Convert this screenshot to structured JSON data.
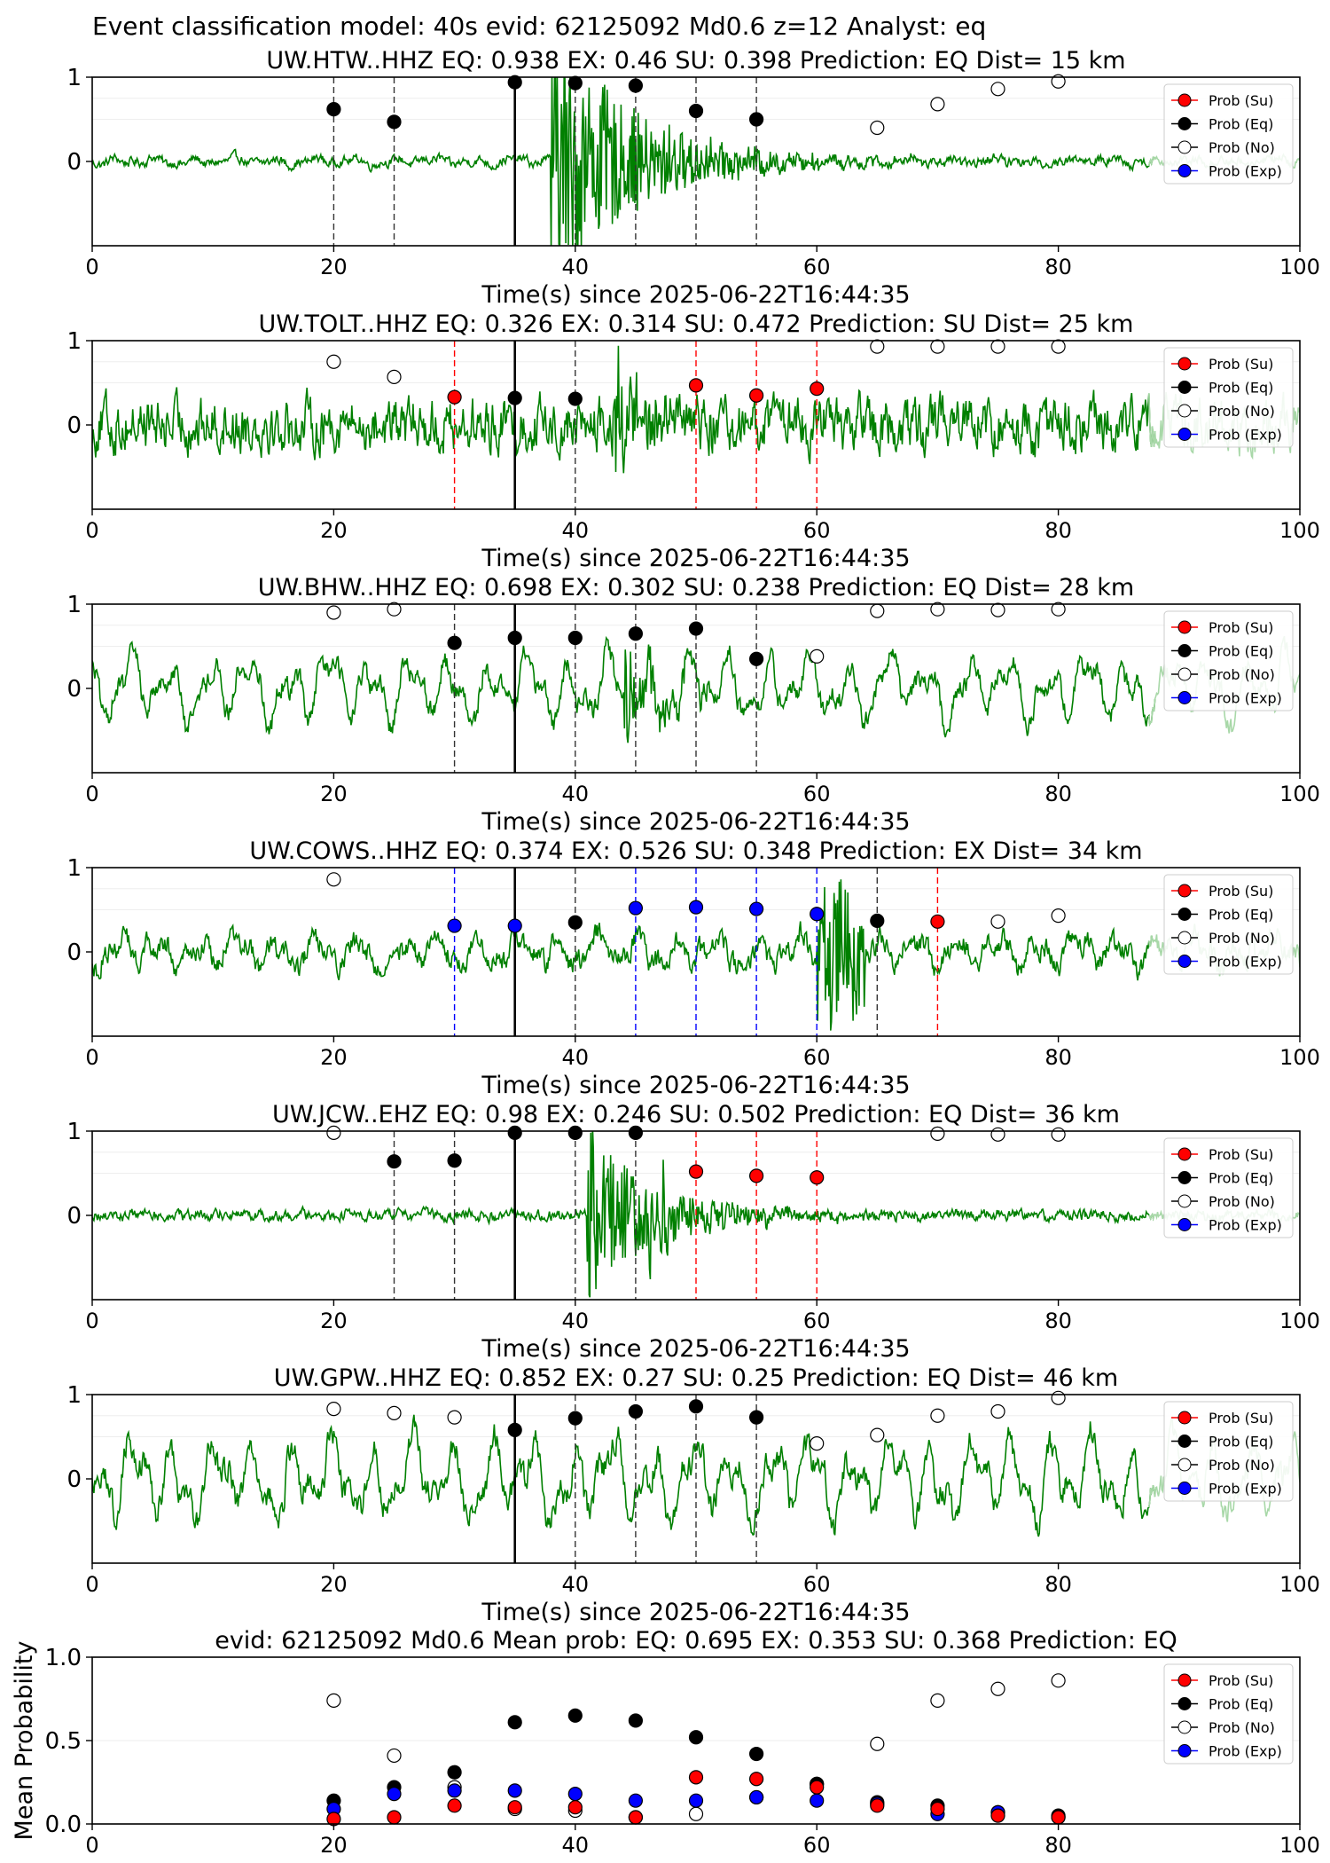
{
  "suptitle": "Event classification model: 40s evid: 62125092 Md0.6 z=12 Analyst: eq",
  "colors": {
    "su": "#ff0000",
    "eq": "#000000",
    "no": "#ffffff",
    "exp": "#0000ff",
    "trace": "#008000",
    "trace_faded": "#a8d8a8"
  },
  "legend": [
    "Prob (Su)",
    "Prob (Eq)",
    "Prob (No)",
    "Prob (Exp)"
  ],
  "xlabel": "Time(s) since 2025-06-22T16:44:35",
  "xticks": [
    "0",
    "20",
    "40",
    "60",
    "80",
    "100"
  ],
  "chart_data": [
    {
      "type": "line+scatter",
      "title": "UW.HTW..HHZ   EQ: 0.938  EX: 0.46  SU: 0.398   Prediction: EQ    Dist= 15 km",
      "yticks": [
        "0",
        "1"
      ],
      "xlim": [
        0,
        100
      ],
      "ylim": [
        -1,
        1
      ],
      "origin_time": 35,
      "waveform": {
        "noise": 0.05,
        "wander": 0.05,
        "onset": 38,
        "peak": 1.6,
        "decay": 7,
        "burst": null
      },
      "windows": [
        {
          "t": 20,
          "p": 0.62,
          "cls": "eq"
        },
        {
          "t": 25,
          "p": 0.47,
          "cls": "eq"
        },
        {
          "t": 35,
          "p": 0.94,
          "cls": "eq"
        },
        {
          "t": 40,
          "p": 0.93,
          "cls": "eq"
        },
        {
          "t": 45,
          "p": 0.9,
          "cls": "eq"
        },
        {
          "t": 50,
          "p": 0.6,
          "cls": "eq"
        },
        {
          "t": 55,
          "p": 0.5,
          "cls": "eq"
        },
        {
          "t": 65,
          "p": 0.4,
          "cls": "no"
        },
        {
          "t": 70,
          "p": 0.68,
          "cls": "no"
        },
        {
          "t": 75,
          "p": 0.86,
          "cls": "no"
        },
        {
          "t": 80,
          "p": 0.95,
          "cls": "no"
        }
      ]
    },
    {
      "type": "line+scatter",
      "title": "UW.TOLT..HHZ   EQ: 0.326  EX: 0.314  SU: 0.472   Prediction: SU    Dist= 25 km",
      "yticks": [
        "0",
        "1"
      ],
      "xlim": [
        0,
        100
      ],
      "ylim": [
        -1,
        1
      ],
      "origin_time": 35,
      "waveform": {
        "noise": 0.28,
        "wander": 0.04,
        "onset": 43,
        "peak": 0.6,
        "decay": 4,
        "burst": null
      },
      "windows": [
        {
          "t": 20,
          "p": 0.75,
          "cls": "no"
        },
        {
          "t": 25,
          "p": 0.57,
          "cls": "no"
        },
        {
          "t": 30,
          "p": 0.33,
          "cls": "su"
        },
        {
          "t": 35,
          "p": 0.32,
          "cls": "eq"
        },
        {
          "t": 40,
          "p": 0.31,
          "cls": "eq"
        },
        {
          "t": 50,
          "p": 0.47,
          "cls": "su"
        },
        {
          "t": 55,
          "p": 0.35,
          "cls": "su"
        },
        {
          "t": 60,
          "p": 0.43,
          "cls": "su"
        },
        {
          "t": 65,
          "p": 0.93,
          "cls": "no"
        },
        {
          "t": 70,
          "p": 0.93,
          "cls": "no"
        },
        {
          "t": 75,
          "p": 0.93,
          "cls": "no"
        },
        {
          "t": 80,
          "p": 0.93,
          "cls": "no"
        }
      ]
    },
    {
      "type": "line+scatter",
      "title": "UW.BHW..HHZ   EQ: 0.698  EX: 0.302  SU: 0.238   Prediction: EQ    Dist= 28 km",
      "yticks": [
        "0",
        "1"
      ],
      "xlim": [
        0,
        100
      ],
      "ylim": [
        -1,
        1
      ],
      "origin_time": 35,
      "waveform": {
        "noise": 0.12,
        "wander": 0.45,
        "onset": 44,
        "peak": 0.5,
        "decay": 3,
        "burst": null
      },
      "windows": [
        {
          "t": 20,
          "p": 0.9,
          "cls": "no"
        },
        {
          "t": 25,
          "p": 0.94,
          "cls": "no"
        },
        {
          "t": 30,
          "p": 0.54,
          "cls": "eq"
        },
        {
          "t": 35,
          "p": 0.6,
          "cls": "eq"
        },
        {
          "t": 40,
          "p": 0.6,
          "cls": "eq"
        },
        {
          "t": 45,
          "p": 0.65,
          "cls": "eq"
        },
        {
          "t": 50,
          "p": 0.71,
          "cls": "eq"
        },
        {
          "t": 55,
          "p": 0.35,
          "cls": "eq"
        },
        {
          "t": 60,
          "p": 0.38,
          "cls": "no"
        },
        {
          "t": 65,
          "p": 0.92,
          "cls": "no"
        },
        {
          "t": 70,
          "p": 0.94,
          "cls": "no"
        },
        {
          "t": 75,
          "p": 0.93,
          "cls": "no"
        },
        {
          "t": 80,
          "p": 0.94,
          "cls": "no"
        }
      ]
    },
    {
      "type": "line+scatter",
      "title": "UW.COWS..HHZ   EQ: 0.374  EX: 0.526  SU: 0.348   Prediction: EX    Dist= 34 km",
      "yticks": [
        "0",
        "1"
      ],
      "xlim": [
        0,
        100
      ],
      "ylim": [
        -1,
        1
      ],
      "origin_time": 35,
      "waveform": {
        "noise": 0.12,
        "wander": 0.22,
        "onset": null,
        "peak": 0,
        "decay": 1,
        "burst": [
          60,
          64,
          0.8
        ]
      },
      "windows": [
        {
          "t": 20,
          "p": 0.86,
          "cls": "no"
        },
        {
          "t": 30,
          "p": 0.31,
          "cls": "exp"
        },
        {
          "t": 35,
          "p": 0.31,
          "cls": "exp"
        },
        {
          "t": 40,
          "p": 0.35,
          "cls": "eq"
        },
        {
          "t": 45,
          "p": 0.52,
          "cls": "exp"
        },
        {
          "t": 50,
          "p": 0.53,
          "cls": "exp"
        },
        {
          "t": 55,
          "p": 0.51,
          "cls": "exp"
        },
        {
          "t": 60,
          "p": 0.45,
          "cls": "exp"
        },
        {
          "t": 65,
          "p": 0.37,
          "cls": "eq"
        },
        {
          "t": 70,
          "p": 0.36,
          "cls": "su"
        },
        {
          "t": 75,
          "p": 0.36,
          "cls": "no"
        },
        {
          "t": 80,
          "p": 0.43,
          "cls": "no"
        }
      ]
    },
    {
      "type": "line+scatter",
      "title": "UW.JCW..EHZ   EQ: 0.98  EX: 0.246  SU: 0.502   Prediction: EQ    Dist= 36 km",
      "yticks": [
        "0",
        "1"
      ],
      "xlim": [
        0,
        100
      ],
      "ylim": [
        -1,
        1
      ],
      "origin_time": 35,
      "waveform": {
        "noise": 0.06,
        "wander": 0.02,
        "onset": 41,
        "peak": 1.0,
        "decay": 6,
        "burst": [
          46,
          48,
          0.45
        ]
      },
      "windows": [
        {
          "t": 20,
          "p": 0.98,
          "cls": "no"
        },
        {
          "t": 25,
          "p": 0.64,
          "cls": "eq"
        },
        {
          "t": 30,
          "p": 0.65,
          "cls": "eq"
        },
        {
          "t": 35,
          "p": 0.98,
          "cls": "eq"
        },
        {
          "t": 40,
          "p": 0.98,
          "cls": "eq"
        },
        {
          "t": 45,
          "p": 0.98,
          "cls": "eq"
        },
        {
          "t": 50,
          "p": 0.52,
          "cls": "su"
        },
        {
          "t": 55,
          "p": 0.47,
          "cls": "su"
        },
        {
          "t": 60,
          "p": 0.45,
          "cls": "su"
        },
        {
          "t": 70,
          "p": 0.97,
          "cls": "no"
        },
        {
          "t": 75,
          "p": 0.96,
          "cls": "no"
        },
        {
          "t": 80,
          "p": 0.96,
          "cls": "no"
        }
      ]
    },
    {
      "type": "line+scatter",
      "title": "UW.GPW..HHZ   EQ: 0.852  EX: 0.27  SU: 0.25   Prediction: EQ    Dist= 46 km",
      "yticks": [
        "0",
        "1"
      ],
      "xlim": [
        0,
        100
      ],
      "ylim": [
        -1,
        1
      ],
      "origin_time": 35,
      "waveform": {
        "noise": 0.15,
        "wander": 0.55,
        "onset": null,
        "peak": 0,
        "decay": 1,
        "burst": null
      },
      "windows": [
        {
          "t": 20,
          "p": 0.83,
          "cls": "no"
        },
        {
          "t": 25,
          "p": 0.78,
          "cls": "no"
        },
        {
          "t": 30,
          "p": 0.73,
          "cls": "no"
        },
        {
          "t": 35,
          "p": 0.58,
          "cls": "eq"
        },
        {
          "t": 40,
          "p": 0.72,
          "cls": "eq"
        },
        {
          "t": 45,
          "p": 0.8,
          "cls": "eq"
        },
        {
          "t": 50,
          "p": 0.86,
          "cls": "eq"
        },
        {
          "t": 55,
          "p": 0.73,
          "cls": "eq"
        },
        {
          "t": 60,
          "p": 0.42,
          "cls": "no"
        },
        {
          "t": 65,
          "p": 0.52,
          "cls": "no"
        },
        {
          "t": 70,
          "p": 0.75,
          "cls": "no"
        },
        {
          "t": 75,
          "p": 0.8,
          "cls": "no"
        },
        {
          "t": 80,
          "p": 0.96,
          "cls": "no"
        }
      ]
    },
    {
      "type": "scatter",
      "title": "evid: 62125092  Md0.6   Mean prob:   EQ: 0.695  EX: 0.353  SU: 0.368   Prediction: EQ",
      "ylabel": "Mean Probability",
      "yticks": [
        "0.0",
        "0.5",
        "1.0"
      ],
      "xlim": [
        0,
        100
      ],
      "ylim": [
        0,
        1
      ],
      "x": [
        20,
        25,
        30,
        35,
        40,
        45,
        50,
        55,
        60,
        65,
        70,
        75,
        80
      ],
      "series": [
        {
          "name": "Prob (No)",
          "cls": "no",
          "values": [
            0.74,
            0.41,
            0.22,
            0.09,
            0.08,
            0.04,
            0.06,
            0.16,
            0.24,
            0.48,
            0.74,
            0.81,
            0.86
          ]
        },
        {
          "name": "Prob (Eq)",
          "cls": "eq",
          "values": [
            0.14,
            0.22,
            0.31,
            0.61,
            0.65,
            0.62,
            0.52,
            0.42,
            0.24,
            0.13,
            0.11,
            0.07,
            0.05
          ]
        },
        {
          "name": "Prob (Exp)",
          "cls": "exp",
          "values": [
            0.09,
            0.18,
            0.2,
            0.2,
            0.18,
            0.14,
            0.14,
            0.16,
            0.14,
            0.12,
            0.06,
            0.07,
            0.04
          ]
        },
        {
          "name": "Prob (Su)",
          "cls": "su",
          "values": [
            0.03,
            0.04,
            0.11,
            0.1,
            0.1,
            0.04,
            0.28,
            0.27,
            0.22,
            0.11,
            0.09,
            0.05,
            0.04
          ]
        }
      ]
    }
  ]
}
